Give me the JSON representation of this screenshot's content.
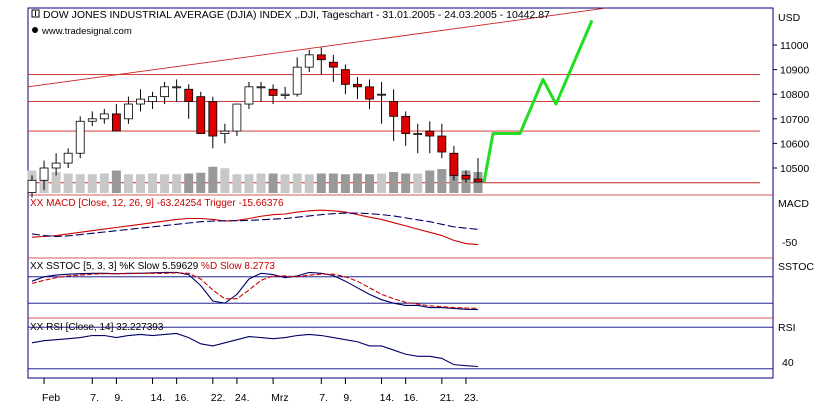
{
  "header": {
    "title": "DOW JONES INDUSTRIAL AVERAGE (DJIA) INDEX ,.DJI, Tageschart - 31.01.2005 - 24.03.2005 - 10442.87",
    "watermark": "www.tradesignal.com",
    "currency": "USD"
  },
  "colors": {
    "up_candle": "#ffffff",
    "down_candle": "#dd0000",
    "volume_a": "#999999",
    "volume_b": "#c8c8c8",
    "resistance": "#cc2222",
    "projection": "#22dd22",
    "line": "#000066",
    "signal": "#cc0000",
    "frame": "#000080"
  },
  "chart_data": [
    {
      "type": "candlestick",
      "name": "price",
      "x": [
        "31.01",
        "01.02",
        "02.02",
        "03.02",
        "04.02",
        "07.02",
        "08.02",
        "09.02",
        "10.02",
        "11.02",
        "14.02",
        "15.02",
        "16.02",
        "17.02",
        "18.02",
        "22.02",
        "23.02",
        "24.02",
        "25.02",
        "28.02",
        "01.03",
        "02.03",
        "03.03",
        "04.03",
        "07.03",
        "08.03",
        "09.03",
        "10.03",
        "11.03",
        "14.03",
        "15.03",
        "16.03",
        "17.03",
        "18.03",
        "21.03",
        "22.03",
        "23.03",
        "24.03"
      ],
      "open": [
        10400,
        10450,
        10500,
        10520,
        10560,
        10690,
        10700,
        10720,
        10700,
        10760,
        10770,
        10790,
        10830,
        10820,
        10790,
        10770,
        10640,
        10650,
        10760,
        10830,
        10820,
        10795,
        10800,
        10910,
        10960,
        10930,
        10900,
        10840,
        10830,
        10800,
        10770,
        10710,
        10640,
        10650,
        10630,
        10560,
        10470,
        10455
      ],
      "high": [
        10470,
        10530,
        10560,
        10580,
        10710,
        10730,
        10740,
        10760,
        10790,
        10820,
        10810,
        10850,
        10860,
        10840,
        10810,
        10790,
        10680,
        10760,
        10850,
        10850,
        10840,
        10830,
        10950,
        10980,
        10990,
        10960,
        10920,
        10870,
        10860,
        10850,
        10820,
        10730,
        10680,
        10690,
        10680,
        10590,
        10490,
        10540
      ],
      "high_line": [],
      "low": [
        10380,
        10410,
        10470,
        10500,
        10540,
        10670,
        10680,
        10650,
        10680,
        10730,
        10740,
        10760,
        10770,
        10700,
        10640,
        10580,
        10600,
        10630,
        10740,
        10770,
        10760,
        10780,
        10790,
        10890,
        10880,
        10850,
        10800,
        10780,
        10740,
        10680,
        10610,
        10590,
        10560,
        10560,
        10540,
        10450,
        10440,
        10440
      ],
      "close": [
        10450,
        10500,
        10520,
        10560,
        10690,
        10700,
        10720,
        10650,
        10760,
        10780,
        10790,
        10830,
        10830,
        10770,
        10640,
        10630,
        10650,
        10760,
        10830,
        10830,
        10795,
        10800,
        10910,
        10960,
        10940,
        10910,
        10840,
        10830,
        10780,
        10800,
        10710,
        10640,
        10640,
        10630,
        10565,
        10470,
        10455,
        10442.87
      ],
      "ylim": [
        10400,
        11150
      ],
      "yticks": [
        "10500",
        "10600",
        "10700",
        "10800",
        "10900",
        "11000",
        "USD"
      ],
      "resistance_levels": [
        10880,
        10770,
        10650,
        10440
      ],
      "trend_start": 10830,
      "trend_end": 11150,
      "projection": [
        10442.87,
        10640,
        10640,
        10860,
        10760,
        11100
      ],
      "volume": [
        3.0,
        2.6,
        2.8,
        2.6,
        2.5,
        2.5,
        2.6,
        3.0,
        2.5,
        2.5,
        2.6,
        2.5,
        2.5,
        2.6,
        2.7,
        3.5,
        3.3,
        2.5,
        2.5,
        2.6,
        2.6,
        2.5,
        2.6,
        2.5,
        2.6,
        2.6,
        2.5,
        2.6,
        2.5,
        2.6,
        2.8,
        2.6,
        2.6,
        3.0,
        3.2,
        3.4,
        3.0,
        2.8
      ],
      "xticks": [
        "Feb",
        "7.",
        "9.",
        "14.",
        "16.",
        "22.",
        "24.",
        "Mrz",
        "7.",
        "9.",
        "14.",
        "16.",
        "21.",
        "23."
      ]
    },
    {
      "type": "line",
      "name": "macd",
      "label": "XX MACD [Close, 12, 26, 9] -63.24254 Trigger -15.66376",
      "label_main": "XX MACD [Close, 12, 26, 9]",
      "label_value": "-63.24254",
      "label_trigger": "Trigger",
      "label_trigger_value": "-15.66376",
      "side_label": "MACD",
      "ytick": "-50",
      "ylim": [
        -80,
        60
      ],
      "series": [
        {
          "values": [
            -40,
            -38,
            -35,
            -30,
            -25,
            -20,
            -15,
            -10,
            -5,
            0,
            5,
            10,
            15,
            18,
            18,
            15,
            10,
            12,
            18,
            25,
            30,
            32,
            38,
            42,
            44,
            42,
            38,
            30,
            22,
            15,
            5,
            -5,
            -15,
            -25,
            -35,
            -50,
            -60,
            -63
          ]
        },
        {
          "values": [
            -30,
            -35,
            -38,
            -36,
            -32,
            -28,
            -24,
            -20,
            -16,
            -12,
            -8,
            -4,
            0,
            4,
            8,
            10,
            11,
            11,
            12,
            14,
            16,
            18,
            22,
            26,
            30,
            33,
            35,
            35,
            33,
            30,
            26,
            20,
            14,
            8,
            0,
            -8,
            -12,
            -15.66
          ]
        }
      ]
    },
    {
      "type": "line",
      "name": "sstoc",
      "label": "XX SSTOC [5, 3, 3] %K Slow 5.59629 %D Slow 8.2773",
      "label_main": "XX SSTOC [5, 3, 3]",
      "label_k": "%K Slow",
      "label_k_value": "5.59629",
      "label_d": "%D Slow",
      "label_d_value": "8.2773",
      "side_label": "SSTOC",
      "ylim": [
        0,
        100
      ],
      "levels": [
        80,
        20
      ],
      "series": [
        {
          "values": [
            70,
            80,
            84,
            86,
            87,
            88,
            88,
            87,
            88,
            88,
            89,
            90,
            90,
            85,
            60,
            25,
            20,
            40,
            75,
            88,
            85,
            78,
            82,
            90,
            88,
            83,
            70,
            55,
            40,
            28,
            20,
            15,
            15,
            10,
            10,
            8,
            6,
            5.6
          ]
        },
        {
          "values": [
            65,
            72,
            78,
            82,
            84,
            86,
            87,
            87,
            87,
            88,
            88,
            88,
            89,
            88,
            75,
            50,
            30,
            30,
            50,
            72,
            82,
            82,
            80,
            84,
            86,
            86,
            80,
            70,
            55,
            40,
            30,
            22,
            18,
            14,
            12,
            10,
            9,
            8.28
          ]
        }
      ]
    },
    {
      "type": "line",
      "name": "rsi",
      "label": "XX RSI [Close, 14] 32.227393",
      "label_main": "XX RSI [Close, 14]",
      "label_value": "32.227393",
      "side_label": "RSI",
      "ytick": "40",
      "ylim": [
        25,
        75
      ],
      "levels": [
        70,
        30
      ],
      "series": [
        {
          "values": [
            55,
            57,
            58,
            59,
            60,
            62,
            62,
            60,
            62,
            63,
            62,
            63,
            64,
            60,
            54,
            52,
            55,
            58,
            61,
            60,
            59,
            60,
            62,
            63,
            62,
            60,
            58,
            56,
            52,
            52,
            48,
            44,
            42,
            42,
            40,
            34,
            33,
            32.2
          ]
        }
      ]
    }
  ]
}
